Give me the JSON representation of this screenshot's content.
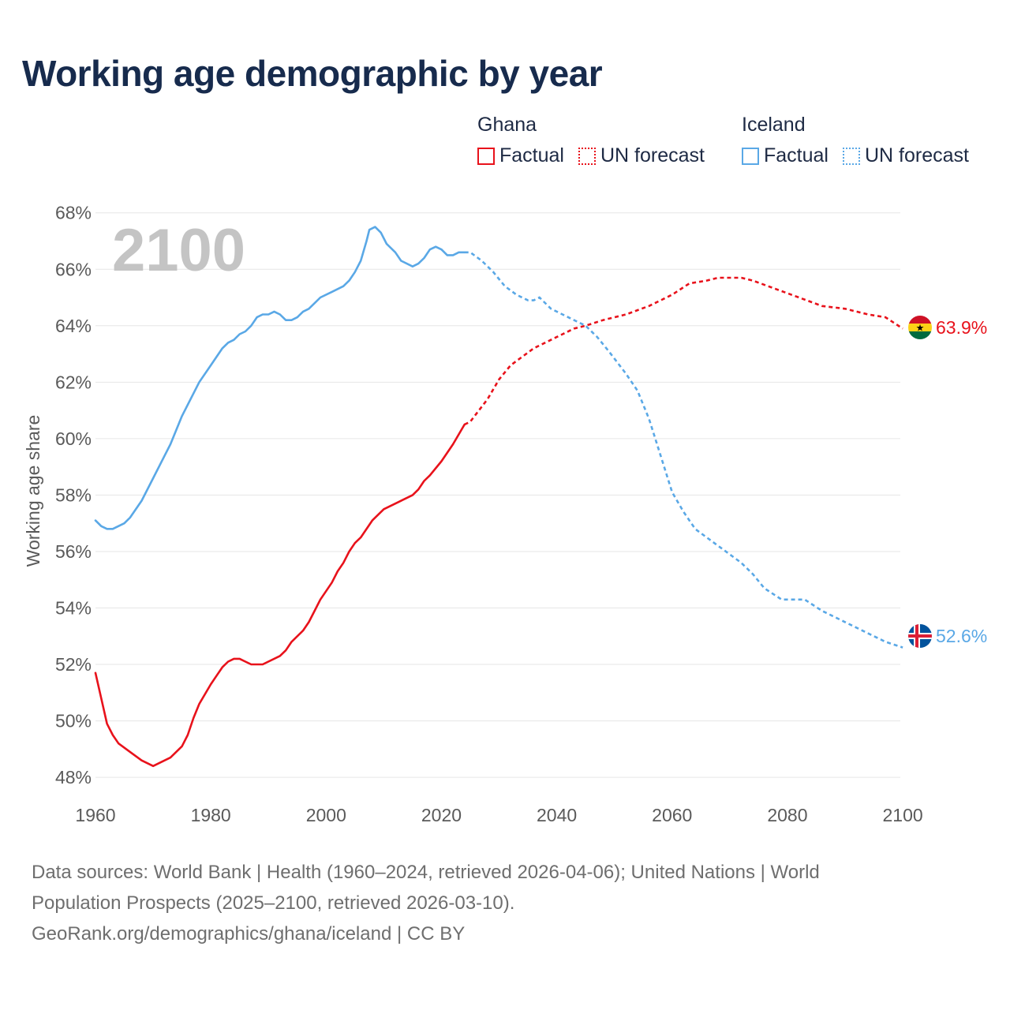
{
  "title": "Working age demographic by year",
  "legend": {
    "groups": [
      {
        "country": "Ghana",
        "color": "#e8121b",
        "items": [
          {
            "label": "Factual",
            "style": "solid"
          },
          {
            "label": "UN forecast",
            "style": "dotted"
          }
        ]
      },
      {
        "country": "Iceland",
        "color": "#5aa8e6",
        "items": [
          {
            "label": "Factual",
            "style": "solid"
          },
          {
            "label": "UN forecast",
            "style": "dotted"
          }
        ]
      }
    ]
  },
  "year_display": "2100",
  "end_labels": {
    "ghana": "63.9%",
    "iceland": "52.6%"
  },
  "source": {
    "line1": "Data sources: World Bank | Health (1960–2024, retrieved 2026-04-06); United Nations | World",
    "line2": "Population Prospects (2025–2100, retrieved 2026-03-10).",
    "line3": "GeoRank.org/demographics/ghana/iceland | CC BY"
  },
  "chart_data": {
    "type": "line",
    "title": "Working age demographic by year",
    "xlabel": "",
    "ylabel": "Working age share",
    "xlim": [
      1960,
      2103
    ],
    "ylim": [
      47.5,
      68.3
    ],
    "x_ticks": [
      1960,
      1980,
      2000,
      2020,
      2040,
      2060,
      2080,
      2100
    ],
    "y_ticks": [
      48,
      50,
      52,
      54,
      56,
      58,
      60,
      62,
      64,
      66,
      68
    ],
    "y_tick_labels": [
      "48%",
      "50%",
      "52%",
      "54%",
      "56%",
      "58%",
      "60%",
      "62%",
      "64%",
      "66%",
      "68%"
    ],
    "grid": true,
    "factual_end_year": 2024,
    "series": [
      {
        "name": "Ghana",
        "color": "#e8121b",
        "end_label": "63.9%",
        "points": [
          [
            1960,
            51.7
          ],
          [
            1961,
            50.8
          ],
          [
            1962,
            49.9
          ],
          [
            1963,
            49.5
          ],
          [
            1964,
            49.2
          ],
          [
            1966,
            48.9
          ],
          [
            1968,
            48.6
          ],
          [
            1970,
            48.4
          ],
          [
            1973,
            48.7
          ],
          [
            1975,
            49.1
          ],
          [
            1976,
            49.5
          ],
          [
            1977,
            50.1
          ],
          [
            1978,
            50.6
          ],
          [
            1980,
            51.3
          ],
          [
            1981,
            51.6
          ],
          [
            1982,
            51.9
          ],
          [
            1983,
            52.1
          ],
          [
            1984,
            52.2
          ],
          [
            1985,
            52.2
          ],
          [
            1986,
            52.1
          ],
          [
            1987,
            52.0
          ],
          [
            1989,
            52.0
          ],
          [
            1992,
            52.3
          ],
          [
            1993,
            52.5
          ],
          [
            1994,
            52.8
          ],
          [
            1996,
            53.2
          ],
          [
            1997,
            53.5
          ],
          [
            1998,
            53.9
          ],
          [
            1999,
            54.3
          ],
          [
            2001,
            54.9
          ],
          [
            2002,
            55.3
          ],
          [
            2003,
            55.6
          ],
          [
            2004,
            56.0
          ],
          [
            2005,
            56.3
          ],
          [
            2006,
            56.5
          ],
          [
            2008,
            57.1
          ],
          [
            2010,
            57.5
          ],
          [
            2012,
            57.7
          ],
          [
            2015,
            58.0
          ],
          [
            2016,
            58.2
          ],
          [
            2017,
            58.5
          ],
          [
            2018,
            58.7
          ],
          [
            2020,
            59.2
          ],
          [
            2022,
            59.8
          ],
          [
            2024,
            60.5
          ],
          [
            2025,
            60.6
          ],
          [
            2028,
            61.4
          ],
          [
            2030,
            62.1
          ],
          [
            2032,
            62.6
          ],
          [
            2034,
            62.9
          ],
          [
            2036,
            63.2
          ],
          [
            2040,
            63.6
          ],
          [
            2043,
            63.9
          ],
          [
            2045,
            64.0
          ],
          [
            2048,
            64.2
          ],
          [
            2052,
            64.4
          ],
          [
            2056,
            64.7
          ],
          [
            2060,
            65.1
          ],
          [
            2063,
            65.5
          ],
          [
            2066,
            65.6
          ],
          [
            2068,
            65.7
          ],
          [
            2072,
            65.7
          ],
          [
            2074,
            65.6
          ],
          [
            2078,
            65.3
          ],
          [
            2082,
            65.0
          ],
          [
            2086,
            64.7
          ],
          [
            2090,
            64.6
          ],
          [
            2094,
            64.4
          ],
          [
            2097,
            64.3
          ],
          [
            2100,
            63.9
          ]
        ]
      },
      {
        "name": "Iceland",
        "color": "#5aa8e6",
        "end_label": "52.6%",
        "points": [
          [
            1960,
            57.1
          ],
          [
            1961,
            56.9
          ],
          [
            1962,
            56.8
          ],
          [
            1963,
            56.8
          ],
          [
            1965,
            57.0
          ],
          [
            1966,
            57.2
          ],
          [
            1968,
            57.8
          ],
          [
            1970,
            58.6
          ],
          [
            1972,
            59.4
          ],
          [
            1973,
            59.8
          ],
          [
            1975,
            60.8
          ],
          [
            1978,
            62.0
          ],
          [
            1980,
            62.6
          ],
          [
            1982,
            63.2
          ],
          [
            1983,
            63.4
          ],
          [
            1984,
            63.5
          ],
          [
            1985,
            63.7
          ],
          [
            1986,
            63.8
          ],
          [
            1987,
            64.0
          ],
          [
            1988,
            64.3
          ],
          [
            1989,
            64.4
          ],
          [
            1990,
            64.4
          ],
          [
            1991,
            64.5
          ],
          [
            1992,
            64.4
          ],
          [
            1993,
            64.2
          ],
          [
            1994,
            64.2
          ],
          [
            1995,
            64.3
          ],
          [
            1996,
            64.5
          ],
          [
            1997,
            64.6
          ],
          [
            1998,
            64.8
          ],
          [
            1999,
            65.0
          ],
          [
            2001,
            65.2
          ],
          [
            2003,
            65.4
          ],
          [
            2004,
            65.6
          ],
          [
            2005,
            65.9
          ],
          [
            2006,
            66.3
          ],
          [
            2007,
            67.0
          ],
          [
            2007.5,
            67.4
          ],
          [
            2008.5,
            67.5
          ],
          [
            2009.5,
            67.3
          ],
          [
            2010.5,
            66.9
          ],
          [
            2012,
            66.6
          ],
          [
            2013,
            66.3
          ],
          [
            2015,
            66.1
          ],
          [
            2016,
            66.2
          ],
          [
            2017,
            66.4
          ],
          [
            2018,
            66.7
          ],
          [
            2019,
            66.8
          ],
          [
            2020,
            66.7
          ],
          [
            2021,
            66.5
          ],
          [
            2022,
            66.5
          ],
          [
            2023,
            66.6
          ],
          [
            2024,
            66.6
          ],
          [
            2025,
            66.6
          ],
          [
            2027,
            66.3
          ],
          [
            2029,
            65.9
          ],
          [
            2031,
            65.4
          ],
          [
            2033,
            65.1
          ],
          [
            2035,
            64.9
          ],
          [
            2036,
            64.9
          ],
          [
            2037,
            65.0
          ],
          [
            2039,
            64.6
          ],
          [
            2041,
            64.4
          ],
          [
            2043,
            64.2
          ],
          [
            2045,
            64.0
          ],
          [
            2047,
            63.6
          ],
          [
            2049,
            63.1
          ],
          [
            2052,
            62.3
          ],
          [
            2054,
            61.7
          ],
          [
            2056,
            60.7
          ],
          [
            2058,
            59.4
          ],
          [
            2060,
            58.1
          ],
          [
            2062,
            57.4
          ],
          [
            2064,
            56.8
          ],
          [
            2066,
            56.5
          ],
          [
            2068,
            56.2
          ],
          [
            2070,
            55.9
          ],
          [
            2072,
            55.6
          ],
          [
            2074,
            55.2
          ],
          [
            2076,
            54.7
          ],
          [
            2079,
            54.3
          ],
          [
            2083,
            54.3
          ],
          [
            2086,
            53.9
          ],
          [
            2090,
            53.5
          ],
          [
            2094,
            53.1
          ],
          [
            2097,
            52.8
          ],
          [
            2100,
            52.6
          ]
        ]
      }
    ]
  }
}
